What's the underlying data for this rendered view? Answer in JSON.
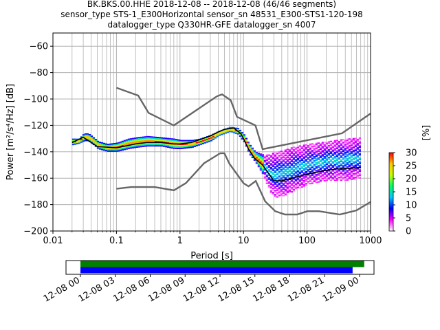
{
  "title_lines": [
    "BK.BKS.00.HHE   2018-12-08 -- 2018-12-08  (46/46 segments)",
    "sensor_type STS-1_E300Horizontal sensor_sn 48531_E300-STS1-120-198",
    "datalogger_type Q330HR-GFE datalogger_sn 4007"
  ],
  "chart_data": [
    {
      "type": "heatmap",
      "title": "",
      "xlabel": "Period [s]",
      "ylabel": "Power [m²/s⁴/Hz] [dB]",
      "xscale": "log",
      "xlim": [
        0.01,
        1000
      ],
      "ylim": [
        -200,
        -50
      ],
      "xticks": [
        0.01,
        0.1,
        1,
        10,
        100,
        1000
      ],
      "xtick_labels": [
        "0.01",
        "0.1",
        "1",
        "10",
        "100",
        "1000"
      ],
      "yticks": [
        -200,
        -180,
        -160,
        -140,
        -120,
        -100,
        -80,
        -60
      ],
      "ytick_labels": [
        "−200",
        "−180",
        "−160",
        "−140",
        "−120",
        "−100",
        "−80",
        "−60"
      ],
      "grid": true,
      "colorbar": {
        "label": "[%]",
        "min": 0,
        "max": 30,
        "ticks": [
          0,
          5,
          10,
          15,
          20,
          25,
          30
        ],
        "tick_labels": [
          "0",
          "5",
          "10",
          "15",
          "20",
          "25",
          "30"
        ],
        "colors": [
          "#ffffff",
          "#ff00ff",
          "#0000ff",
          "#00c8ff",
          "#00ff64",
          "#c8ff00",
          "#ffc800",
          "#ff0000"
        ]
      },
      "psd_band": [
        {
          "x": 0.02,
          "lo": -135,
          "hi": -130
        },
        {
          "x": 0.025,
          "lo": -134,
          "hi": -130
        },
        {
          "x": 0.03,
          "lo": -132,
          "hi": -126
        },
        {
          "x": 0.035,
          "lo": -132,
          "hi": -126
        },
        {
          "x": 0.04,
          "lo": -134,
          "hi": -128
        },
        {
          "x": 0.05,
          "lo": -138,
          "hi": -132
        },
        {
          "x": 0.07,
          "lo": -140,
          "hi": -134
        },
        {
          "x": 0.1,
          "lo": -140,
          "hi": -133
        },
        {
          "x": 0.15,
          "lo": -138,
          "hi": -130
        },
        {
          "x": 0.2,
          "lo": -137,
          "hi": -129
        },
        {
          "x": 0.3,
          "lo": -136,
          "hi": -128
        },
        {
          "x": 0.5,
          "lo": -136,
          "hi": -129
        },
        {
          "x": 0.8,
          "lo": -138,
          "hi": -130
        },
        {
          "x": 1.0,
          "lo": -138,
          "hi": -131
        },
        {
          "x": 1.5,
          "lo": -137,
          "hi": -131
        },
        {
          "x": 2.0,
          "lo": -135,
          "hi": -130
        },
        {
          "x": 3.0,
          "lo": -132,
          "hi": -127
        },
        {
          "x": 4.0,
          "lo": -128,
          "hi": -124
        },
        {
          "x": 6.0,
          "lo": -125,
          "hi": -121
        },
        {
          "x": 8.0,
          "lo": -127,
          "hi": -122
        },
        {
          "x": 10.0,
          "lo": -133,
          "hi": -127
        },
        {
          "x": 12.0,
          "lo": -142,
          "hi": -134
        },
        {
          "x": 15.0,
          "lo": -148,
          "hi": -140
        },
        {
          "x": 20.0,
          "lo": -158,
          "hi": -142
        },
        {
          "x": 25.0,
          "lo": -170,
          "hi": -142
        },
        {
          "x": 30.0,
          "lo": -175,
          "hi": -140
        },
        {
          "x": 40.0,
          "lo": -174,
          "hi": -139
        },
        {
          "x": 60.0,
          "lo": -170,
          "hi": -136
        },
        {
          "x": 100.0,
          "lo": -165,
          "hi": -134
        },
        {
          "x": 200.0,
          "lo": -162,
          "hi": -132
        },
        {
          "x": 400.0,
          "lo": -162,
          "hi": -130
        },
        {
          "x": 700.0,
          "lo": -160,
          "hi": -129
        }
      ],
      "series": [
        {
          "x": [
            0.02,
            0.03,
            0.05,
            0.1,
            0.2,
            0.3,
            0.5,
            0.8,
            1.0,
            1.5,
            2.0,
            3.0,
            4.0,
            5.0,
            7.0,
            9.0,
            10.0,
            12.0,
            15.0,
            20.0,
            30.0,
            40.0,
            70.0,
            100.0,
            200.0,
            300.0,
            700.0
          ],
          "y": [
            -133,
            -129,
            -136,
            -137,
            -134,
            -133,
            -133,
            -134,
            -134,
            -133,
            -131,
            -128,
            -125,
            -123,
            -122,
            -126,
            -130,
            -138,
            -145,
            -150,
            -162,
            -162,
            -159,
            -157,
            -154,
            -153,
            -152
          ]
        }
      ],
      "noise_models": [
        {
          "x": [
            0.1,
            0.22,
            0.32,
            0.8,
            3.8,
            4.6,
            6.3,
            7.9,
            15.4,
            20.0,
            354.8,
            1000.0
          ],
          "y": [
            -91.5,
            -97.4,
            -110.5,
            -120.0,
            -98.0,
            -96.5,
            -101.0,
            -113.5,
            -120.0,
            -138.0,
            -126.0,
            -111.0
          ]
        },
        {
          "x": [
            0.1,
            0.17,
            0.4,
            0.8,
            1.24,
            2.4,
            4.3,
            5.0,
            6.0,
            10.0,
            12.0,
            15.6,
            21.9,
            31.6,
            45.0,
            70.0,
            101.0,
            154.0,
            328.0,
            600.0,
            1000.0
          ],
          "y": [
            -168.0,
            -166.7,
            -166.7,
            -169.2,
            -163.7,
            -148.6,
            -141.1,
            -141.1,
            -149.0,
            -163.8,
            -166.2,
            -162.1,
            -177.5,
            -185.0,
            -187.5,
            -187.5,
            -185.0,
            -185.0,
            -187.5,
            -184.4,
            -178.0
          ]
        }
      ]
    },
    {
      "type": "timeline",
      "title": "",
      "xlim": [
        "12-08 00",
        "12-09 00"
      ],
      "xtick_labels": [
        "12-08 00",
        "12-08 03",
        "12-08 06",
        "12-08 09",
        "12-08 12",
        "12-08 15",
        "12-08 18",
        "12-08 21",
        "12-09 00"
      ],
      "bars": [
        {
          "color": "#008000",
          "start_h": 0.0,
          "end_h": 24.4
        },
        {
          "color": "#0000ff",
          "start_h": 0.0,
          "end_h": 23.4
        }
      ]
    }
  ]
}
